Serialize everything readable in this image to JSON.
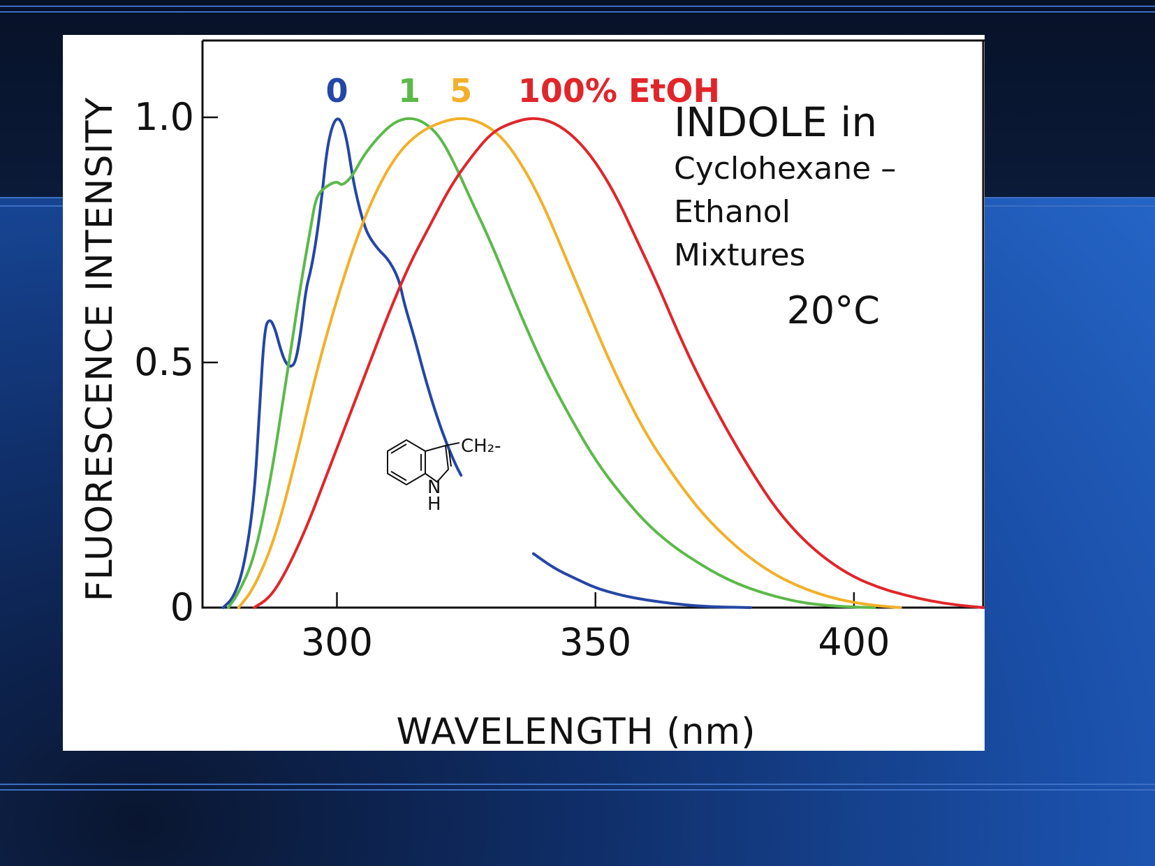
{
  "chart_data": {
    "type": "line",
    "xlabel": "WAVELENGTH (nm)",
    "ylabel": "FLUORESCENCE INTENSITY",
    "xlim": [
      274,
      425
    ],
    "ylim": [
      0,
      1.05
    ],
    "xticks": [
      300,
      350,
      400
    ],
    "xtick_labels": [
      "300",
      "350",
      "400"
    ],
    "yticks": [
      0,
      0.5,
      1.0
    ],
    "ytick_labels": [
      "0",
      "0.5",
      "1.0"
    ],
    "grid": false,
    "legend": "inline labels above peaks",
    "annotations": {
      "title_line1": "INDOLE in",
      "title_line2": "Cyclohexane –",
      "title_line3": "Ethanol",
      "title_line4": "Mixtures",
      "temperature": "20°C",
      "structure_label_ch2": "CH₂-",
      "structure_label_n": "N",
      "structure_label_h": "H"
    },
    "series": [
      {
        "name": "0",
        "color": "#2446a6",
        "segments": [
          [
            [
              278,
              0
            ],
            [
              280,
              0.02
            ],
            [
              282,
              0.08
            ],
            [
              284,
              0.22
            ],
            [
              285,
              0.4
            ],
            [
              286,
              0.57
            ],
            [
              287,
              0.59
            ],
            [
              288,
              0.57
            ],
            [
              289,
              0.53
            ],
            [
              290,
              0.5
            ],
            [
              291,
              0.49
            ],
            [
              292,
              0.5
            ],
            [
              293,
              0.56
            ],
            [
              294,
              0.65
            ],
            [
              295,
              0.69
            ],
            [
              296,
              0.75
            ],
            [
              297,
              0.83
            ],
            [
              298,
              0.93
            ],
            [
              299,
              0.98
            ],
            [
              300,
              1.0
            ],
            [
              301,
              0.99
            ],
            [
              302,
              0.95
            ],
            [
              303,
              0.88
            ],
            [
              304,
              0.83
            ],
            [
              305,
              0.79
            ],
            [
              306,
              0.76
            ],
            [
              308,
              0.73
            ],
            [
              310,
              0.71
            ],
            [
              312,
              0.67
            ],
            [
              313,
              0.62
            ],
            [
              315,
              0.55
            ],
            [
              317,
              0.47
            ],
            [
              319,
              0.4
            ],
            [
              321,
              0.34
            ],
            [
              323,
              0.29
            ],
            [
              324,
              0.27
            ]
          ],
          [
            [
              338,
              0.11
            ],
            [
              342,
              0.08
            ],
            [
              346,
              0.06
            ],
            [
              350,
              0.04
            ],
            [
              355,
              0.025
            ],
            [
              360,
              0.015
            ],
            [
              365,
              0.008
            ],
            [
              370,
              0.003
            ],
            [
              375,
              0.001
            ],
            [
              380,
              0
            ]
          ]
        ]
      },
      {
        "name": "1",
        "color": "#5cb94a",
        "segments": [
          [
            [
              279,
              0
            ],
            [
              281,
              0.03
            ],
            [
              284,
              0.1
            ],
            [
              287,
              0.25
            ],
            [
              290,
              0.45
            ],
            [
              293,
              0.66
            ],
            [
              295,
              0.78
            ],
            [
              296,
              0.84
            ],
            [
              298,
              0.86
            ],
            [
              300,
              0.87
            ],
            [
              301,
              0.86
            ],
            [
              303,
              0.88
            ],
            [
              305,
              0.92
            ],
            [
              308,
              0.96
            ],
            [
              311,
              0.99
            ],
            [
              314,
              1.0
            ],
            [
              317,
              0.99
            ],
            [
              320,
              0.96
            ],
            [
              323,
              0.9
            ],
            [
              326,
              0.83
            ],
            [
              330,
              0.74
            ],
            [
              335,
              0.61
            ],
            [
              340,
              0.49
            ],
            [
              345,
              0.39
            ],
            [
              350,
              0.3
            ],
            [
              355,
              0.23
            ],
            [
              360,
              0.17
            ],
            [
              365,
              0.125
            ],
            [
              370,
              0.09
            ],
            [
              375,
              0.06
            ],
            [
              380,
              0.038
            ],
            [
              385,
              0.022
            ],
            [
              390,
              0.01
            ],
            [
              395,
              0.004
            ],
            [
              400,
              0.001
            ],
            [
              404,
              0
            ]
          ]
        ]
      },
      {
        "name": "5",
        "color": "#f2b02a",
        "segments": [
          [
            [
              281,
              0
            ],
            [
              284,
              0.04
            ],
            [
              288,
              0.14
            ],
            [
              292,
              0.3
            ],
            [
              296,
              0.48
            ],
            [
              300,
              0.63
            ],
            [
              304,
              0.76
            ],
            [
              308,
              0.86
            ],
            [
              312,
              0.93
            ],
            [
              316,
              0.97
            ],
            [
              320,
              0.99
            ],
            [
              324,
              1.0
            ],
            [
              328,
              0.99
            ],
            [
              332,
              0.96
            ],
            [
              336,
              0.9
            ],
            [
              340,
              0.82
            ],
            [
              344,
              0.72
            ],
            [
              348,
              0.62
            ],
            [
              352,
              0.52
            ],
            [
              356,
              0.43
            ],
            [
              360,
              0.35
            ],
            [
              365,
              0.27
            ],
            [
              370,
              0.2
            ],
            [
              375,
              0.145
            ],
            [
              380,
              0.1
            ],
            [
              385,
              0.065
            ],
            [
              390,
              0.04
            ],
            [
              395,
              0.022
            ],
            [
              400,
              0.01
            ],
            [
              405,
              0.003
            ],
            [
              409,
              0
            ]
          ]
        ]
      },
      {
        "name": "100% EtOH",
        "color": "#e0262b",
        "segments": [
          [
            [
              284,
              0
            ],
            [
              287,
              0.02
            ],
            [
              290,
              0.07
            ],
            [
              294,
              0.16
            ],
            [
              298,
              0.27
            ],
            [
              302,
              0.38
            ],
            [
              306,
              0.49
            ],
            [
              310,
              0.6
            ],
            [
              314,
              0.7
            ],
            [
              318,
              0.78
            ],
            [
              322,
              0.86
            ],
            [
              326,
              0.92
            ],
            [
              330,
              0.97
            ],
            [
              334,
              0.99
            ],
            [
              338,
              1.0
            ],
            [
              342,
              0.99
            ],
            [
              346,
              0.96
            ],
            [
              350,
              0.91
            ],
            [
              354,
              0.84
            ],
            [
              358,
              0.75
            ],
            [
              362,
              0.66
            ],
            [
              366,
              0.56
            ],
            [
              370,
              0.47
            ],
            [
              375,
              0.37
            ],
            [
              380,
              0.28
            ],
            [
              385,
              0.2
            ],
            [
              390,
              0.14
            ],
            [
              395,
              0.095
            ],
            [
              400,
              0.062
            ],
            [
              405,
              0.04
            ],
            [
              410,
              0.025
            ],
            [
              415,
              0.013
            ],
            [
              420,
              0.005
            ],
            [
              425,
              0
            ]
          ]
        ]
      }
    ]
  }
}
